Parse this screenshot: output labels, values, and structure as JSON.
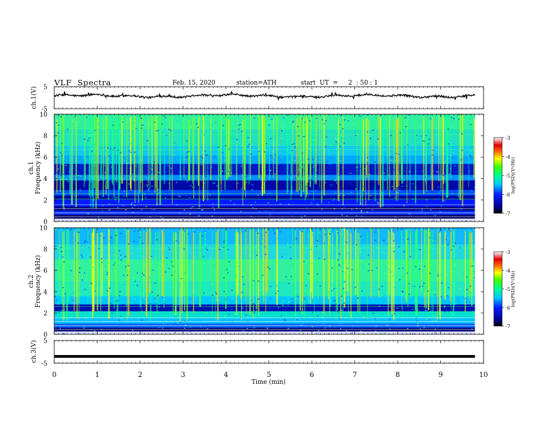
{
  "header": {
    "title": "VLF  Spectra",
    "date": "Feb. 15, 2020",
    "station": "station=ATH",
    "start_label": "start  UT  =",
    "start_value": "2  : 50 : 1"
  },
  "chart_data": [
    {
      "type": "line",
      "name": "ch1-waveform",
      "ylabel": "ch.1(V)",
      "ylim": [
        -5,
        5
      ],
      "yticks": [
        "5",
        "-5"
      ],
      "xlim": [
        0,
        10
      ],
      "x_extent": [
        0,
        9.8
      ],
      "trace_approx_level": 0.8
    },
    {
      "type": "heatmap",
      "name": "ch1-spectrogram",
      "ylabel": "ch.1\nFrequency  (kHz)",
      "ylabel_line1": "ch.1",
      "ylabel_line2": "Frequency  (kHz)",
      "ylim": [
        0,
        10
      ],
      "yticks": [
        "0",
        "2",
        "4",
        "6",
        "8",
        "10"
      ],
      "xlim": [
        0,
        10
      ],
      "x_extent": [
        0,
        9.8
      ],
      "colorbar": {
        "label": "log(PSD)(V²/Hz)",
        "range": [
          -7,
          -3
        ],
        "ticks": [
          "-3",
          "-4",
          "-5",
          "-6",
          "-7"
        ]
      }
    },
    {
      "type": "heatmap",
      "name": "ch2-spectrogram",
      "ylabel": "ch.2\nFrequency  (kHz)",
      "ylabel_line1": "ch.2",
      "ylabel_line2": "Frequency  (kHz)",
      "ylim": [
        0,
        10
      ],
      "yticks": [
        "0",
        "2",
        "4",
        "6",
        "8",
        "10"
      ],
      "xlim": [
        0,
        10
      ],
      "x_extent": [
        0,
        9.8
      ],
      "colorbar": {
        "label": "log(PSD)(V²/Hz)",
        "range": [
          -7,
          -3
        ],
        "ticks": [
          "-3",
          "-4",
          "-5",
          "-6",
          "-7"
        ]
      }
    },
    {
      "type": "line",
      "name": "ch3-waveform",
      "ylabel": "ch.3(V)",
      "ylim": [
        -5,
        5
      ],
      "yticks": [
        "5",
        "-5"
      ],
      "xlim": [
        0,
        10
      ],
      "x_extent": [
        0,
        9.8
      ],
      "trace_level": -2
    }
  ],
  "xaxis": {
    "label": "Time  (min)",
    "ticks": [
      "0",
      "1",
      "2",
      "3",
      "4",
      "5",
      "6",
      "7",
      "8",
      "9",
      "10"
    ]
  }
}
